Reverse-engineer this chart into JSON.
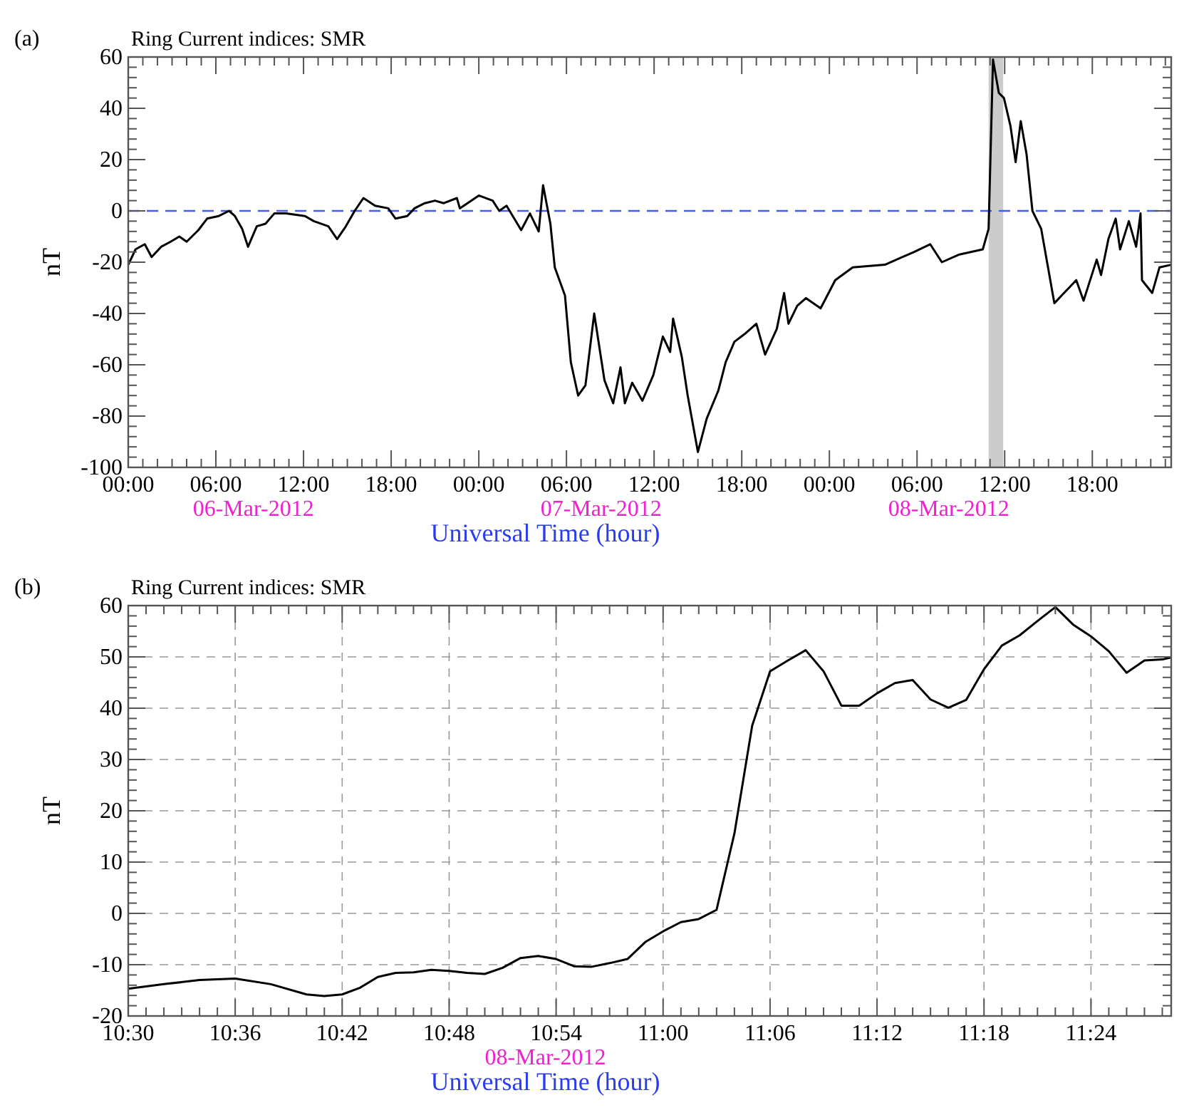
{
  "chart_data": [
    {
      "type": "line",
      "title": "Ring Current indices: SMR",
      "xlabel": "Universal Time (hour)",
      "ylabel": "nT",
      "annotations": [
        "(a)",
        "06-Mar-2012",
        "07-Mar-2012",
        "08-Mar-2012"
      ],
      "xlim": [
        "2012-03-06T00:00",
        "2012-03-08T23:24"
      ],
      "xticks": [
        {
          "value": "2012-03-06T00:00",
          "label": "00:00"
        },
        {
          "value": "2012-03-06T06:00",
          "label": "06:00"
        },
        {
          "value": "2012-03-06T12:00",
          "label": "12:00"
        },
        {
          "value": "2012-03-06T18:00",
          "label": "18:00"
        },
        {
          "value": "2012-03-07T00:00",
          "label": "00:00"
        },
        {
          "value": "2012-03-07T06:00",
          "label": "06:00"
        },
        {
          "value": "2012-03-07T12:00",
          "label": "12:00"
        },
        {
          "value": "2012-03-07T18:00",
          "label": "18:00"
        },
        {
          "value": "2012-03-08T00:00",
          "label": "00:00"
        },
        {
          "value": "2012-03-08T06:00",
          "label": "06:00"
        },
        {
          "value": "2012-03-08T12:00",
          "label": "12:00"
        },
        {
          "value": "2012-03-08T18:00",
          "label": "18:00"
        }
      ],
      "ylim": [
        -100,
        60
      ],
      "yticks": [
        -100,
        -80,
        -60,
        -40,
        -20,
        0,
        20,
        40,
        60
      ],
      "grid": false,
      "ref_lines": [
        {
          "axis": "y",
          "value": 0,
          "color": "#4a5cf0",
          "line_style": "dashed"
        }
      ],
      "bands": [
        {
          "axis": "x",
          "from": "2012-03-08T10:54",
          "to": "2012-03-08T11:54",
          "color": "#cccccc"
        }
      ],
      "series": [
        {
          "color": "#000000",
          "x": [
            "2012-03-06T00:00",
            "2012-03-06T00:30",
            "2012-03-06T01:08",
            "2012-03-06T01:36",
            "2012-03-06T02:15",
            "2012-03-06T02:54",
            "2012-03-06T03:30",
            "2012-03-06T04:00",
            "2012-03-06T04:48",
            "2012-03-06T05:24",
            "2012-03-06T06:12",
            "2012-03-06T06:54",
            "2012-03-06T07:18",
            "2012-03-06T07:48",
            "2012-03-06T08:12",
            "2012-03-06T08:48",
            "2012-03-06T09:24",
            "2012-03-06T10:00",
            "2012-03-06T10:48",
            "2012-03-06T12:06",
            "2012-03-06T12:42",
            "2012-03-06T13:42",
            "2012-03-06T14:18",
            "2012-03-06T14:54",
            "2012-03-06T15:30",
            "2012-03-06T16:06",
            "2012-03-06T16:54",
            "2012-03-06T17:48",
            "2012-03-06T18:18",
            "2012-03-06T19:06",
            "2012-03-06T19:36",
            "2012-03-06T20:18",
            "2012-03-06T21:00",
            "2012-03-06T21:36",
            "2012-03-06T22:30",
            "2012-03-06T22:42",
            "2012-03-07T00:00",
            "2012-03-07T00:57",
            "2012-03-07T01:24",
            "2012-03-07T01:54",
            "2012-03-07T02:54",
            "2012-03-07T03:30",
            "2012-03-07T04:06",
            "2012-03-07T04:24",
            "2012-03-07T04:54",
            "2012-03-07T05:12",
            "2012-03-07T05:54",
            "2012-03-07T06:18",
            "2012-03-07T06:48",
            "2012-03-07T07:18",
            "2012-03-07T07:54",
            "2012-03-07T08:36",
            "2012-03-07T09:12",
            "2012-03-07T09:42",
            "2012-03-07T10:00",
            "2012-03-07T10:30",
            "2012-03-07T11:12",
            "2012-03-07T11:57",
            "2012-03-07T12:36",
            "2012-03-07T13:06",
            "2012-03-07T13:18",
            "2012-03-07T13:54",
            "2012-03-07T14:18",
            "2012-03-07T15:00",
            "2012-03-07T15:36",
            "2012-03-07T16:24",
            "2012-03-07T16:54",
            "2012-03-07T17:30",
            "2012-03-07T18:12",
            "2012-03-07T19:00",
            "2012-03-07T19:36",
            "2012-03-07T20:24",
            "2012-03-07T20:54",
            "2012-03-07T21:12",
            "2012-03-07T21:48",
            "2012-03-07T22:24",
            "2012-03-07T23:24",
            "2012-03-08T00:24",
            "2012-03-08T01:36",
            "2012-03-08T03:48",
            "2012-03-08T05:48",
            "2012-03-08T06:54",
            "2012-03-08T07:42",
            "2012-03-08T08:54",
            "2012-03-08T10:30",
            "2012-03-08T10:54",
            "2012-03-08T11:12",
            "2012-03-08T11:36",
            "2012-03-08T11:57",
            "2012-03-08T12:24",
            "2012-03-08T12:45",
            "2012-03-08T13:06",
            "2012-03-08T13:30",
            "2012-03-08T13:54",
            "2012-03-08T14:30",
            "2012-03-08T15:24",
            "2012-03-08T15:54",
            "2012-03-08T16:54",
            "2012-03-08T17:24",
            "2012-03-08T18:18",
            "2012-03-08T18:36",
            "2012-03-08T19:06",
            "2012-03-08T19:36",
            "2012-03-08T19:54",
            "2012-03-08T20:30",
            "2012-03-08T21:00",
            "2012-03-08T21:18",
            "2012-03-08T21:24",
            "2012-03-08T22:06",
            "2012-03-08T22:36",
            "2012-03-08T23:24"
          ],
          "values": [
            -21,
            -15,
            -13,
            -18,
            -14,
            -12,
            -10,
            -12,
            -7.5,
            -3,
            -2,
            0,
            -2,
            -7,
            -14,
            -6,
            -5,
            -1,
            -1,
            -2,
            -4,
            -6,
            -11,
            -6,
            0,
            5,
            2,
            1,
            -3,
            -2,
            1,
            3,
            4,
            3,
            5,
            1,
            6,
            4,
            0,
            2,
            -7.5,
            -1,
            -8,
            10,
            -5,
            -22,
            -33,
            -59,
            -72,
            -68,
            -40,
            -66,
            -75,
            -61,
            -75,
            -67,
            -74,
            -64,
            -49,
            -55,
            -42,
            -57,
            -72,
            -94,
            -81,
            -70,
            -59,
            -51,
            -48,
            -44,
            -56,
            -46,
            -32,
            -44,
            -37,
            -34,
            -38,
            -27,
            -22,
            -21,
            -16,
            -13,
            -20,
            -17,
            -15,
            -7,
            59,
            46,
            44,
            33,
            19,
            35,
            22,
            0,
            -7,
            -36,
            -33,
            -27,
            -35,
            -19,
            -25,
            -11,
            -3,
            -15,
            -4,
            -14,
            -1,
            -27,
            -32,
            -22,
            -21
          ]
        }
      ]
    },
    {
      "type": "line",
      "title": "Ring Current indices: SMR",
      "xlabel": "Universal Time (hour)",
      "ylabel": "nT",
      "annotations": [
        "(b)",
        "08-Mar-2012"
      ],
      "xlim": [
        10.5,
        11.475
      ],
      "xticks": [
        {
          "value": 10.5,
          "label": "10:30"
        },
        {
          "value": 10.6,
          "label": "10:36"
        },
        {
          "value": 10.7,
          "label": "10:42"
        },
        {
          "value": 10.8,
          "label": "10:48"
        },
        {
          "value": 10.9,
          "label": "10:54"
        },
        {
          "value": 11,
          "label": "11:00"
        },
        {
          "value": 11.1,
          "label": "11:06"
        },
        {
          "value": 11.2,
          "label": "11:12"
        },
        {
          "value": 11.3,
          "label": "11:18"
        },
        {
          "value": 11.4,
          "label": "11:24"
        }
      ],
      "ylim": [
        -20,
        60
      ],
      "yticks": [
        -20,
        -10,
        0,
        10,
        20,
        30,
        40,
        50,
        60
      ],
      "grid": true,
      "series": [
        {
          "color": "#000000",
          "x": [
            10.5,
            10.5333,
            10.5667,
            10.6,
            10.6333,
            10.6667,
            10.6833,
            10.7,
            10.7167,
            10.7333,
            10.75,
            10.7667,
            10.7833,
            10.8,
            10.8167,
            10.8333,
            10.85,
            10.8667,
            10.8833,
            10.9,
            10.9167,
            10.9333,
            10.95,
            10.9667,
            10.9833,
            11,
            11.0167,
            11.0333,
            11.05,
            11.0667,
            11.0833,
            11.1,
            11.1167,
            11.1333,
            11.15,
            11.1667,
            11.1833,
            11.2,
            11.2167,
            11.2333,
            11.25,
            11.2667,
            11.2833,
            11.3,
            11.3167,
            11.3333,
            11.35,
            11.3667,
            11.3833,
            11.4,
            11.4167,
            11.4333,
            11.45,
            11.4667,
            11.475
          ],
          "values": [
            -14.7,
            -13.8,
            -13,
            -12.7,
            -13.8,
            -15.8,
            -16.1,
            -15.8,
            -14.5,
            -12.4,
            -11.6,
            -11.5,
            -11,
            -11.2,
            -11.6,
            -11.8,
            -10.6,
            -8.7,
            -8.3,
            -8.9,
            -10.3,
            -10.4,
            -9.7,
            -8.9,
            -5.6,
            -3.5,
            -1.7,
            -1.1,
            0.7,
            15.6,
            36.6,
            47.2,
            49.3,
            51.3,
            47.2,
            40.5,
            40.5,
            42.9,
            44.9,
            45.5,
            41.7,
            40.1,
            41.6,
            47.6,
            52.2,
            54.2,
            57,
            59.7,
            56.3,
            54,
            51.1,
            46.9,
            49.3,
            49.5,
            49.9
          ]
        }
      ]
    }
  ]
}
